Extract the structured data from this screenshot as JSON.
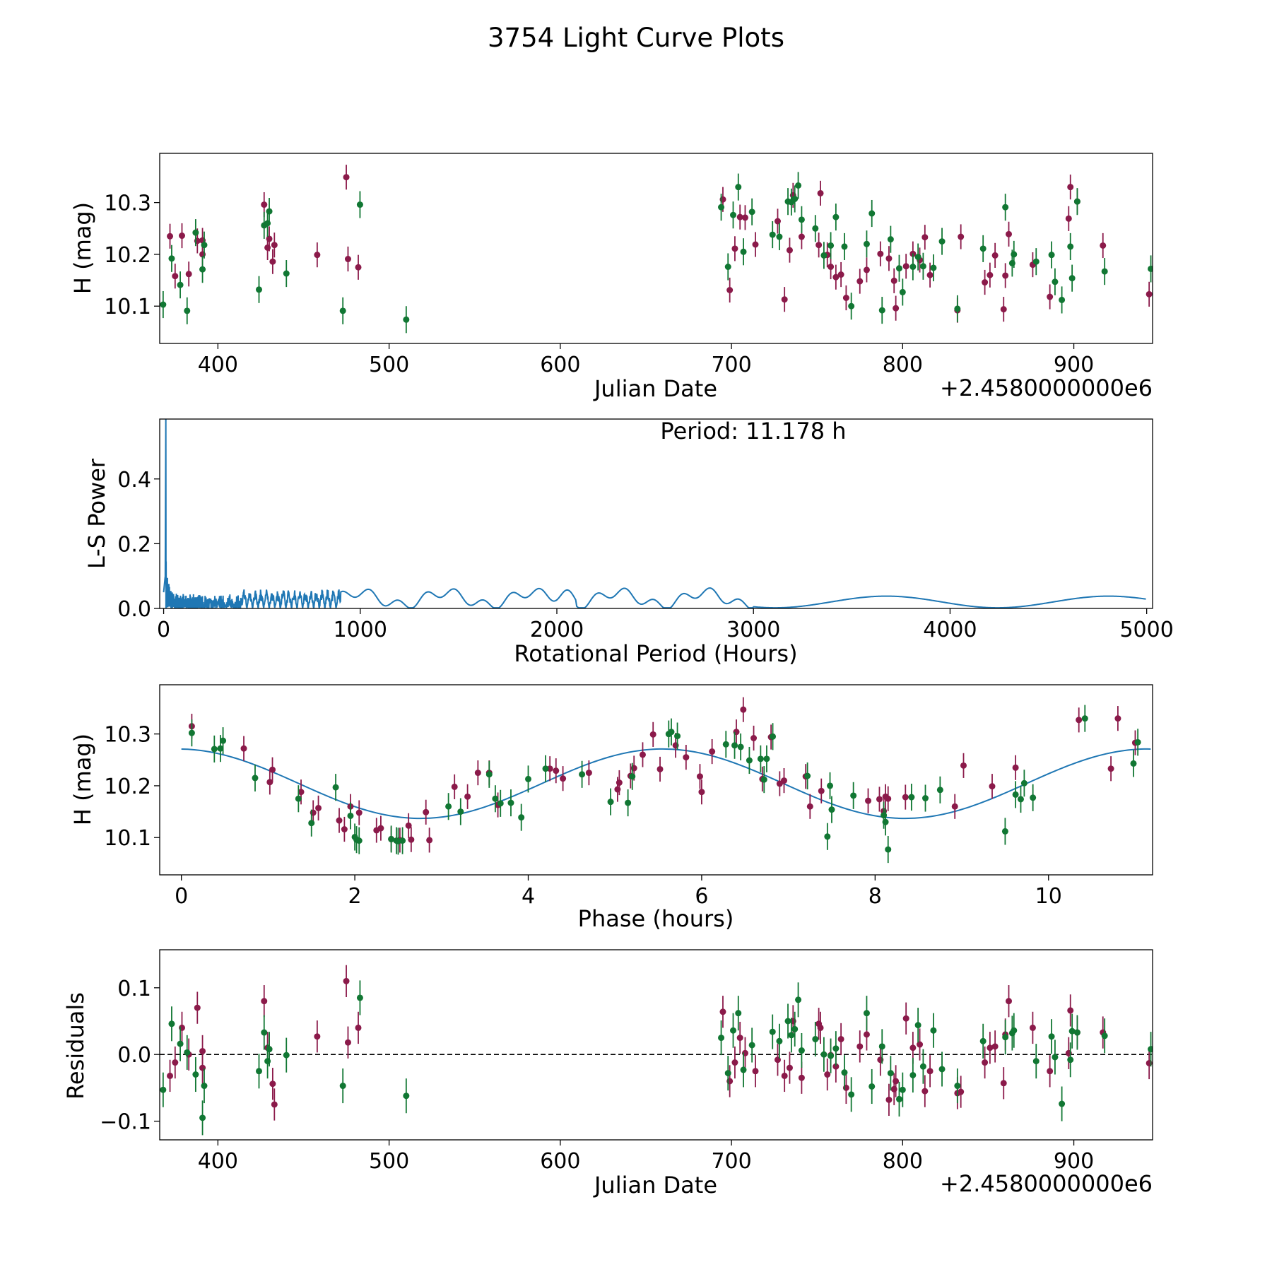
{
  "figure_title": "3754 Light Curve Plots",
  "colors": {
    "band_a": "#8b1a4a",
    "band_b": "#117733",
    "model": "#1f77b4",
    "zero": "#000000"
  },
  "chart_data": [
    {
      "id": "lightcurve",
      "type": "scatter",
      "xlabel": "Julian Date",
      "ylabel": "H (mag)",
      "offset_label": "+2.4580000000e6",
      "xlim": [
        366,
        946
      ],
      "ylim": [
        10.028,
        10.395
      ],
      "xticks": [
        400,
        500,
        600,
        700,
        800,
        900
      ],
      "yticks": [
        10.1,
        10.2,
        10.3
      ],
      "series": [
        {
          "name": "band A",
          "color": "#8b1a4a",
          "err": 0.024,
          "x": [
            372,
            375,
            379,
            383,
            388,
            391,
            391,
            427,
            429,
            430,
            432,
            433,
            458,
            475,
            476,
            482,
            695,
            699,
            702,
            705,
            708,
            714,
            727,
            731,
            734,
            736,
            741,
            751,
            752,
            756,
            758,
            761,
            764,
            767,
            775,
            779,
            787,
            792,
            795,
            796,
            802,
            806,
            810,
            813,
            816,
            832,
            834,
            848,
            851,
            854,
            859,
            860,
            862,
            876,
            886,
            897,
            898,
            902,
            917,
            944
          ],
          "y": [
            10.235,
            10.158,
            10.236,
            10.162,
            10.226,
            10.227,
            10.2,
            10.296,
            10.213,
            10.23,
            10.186,
            10.218,
            10.199,
            10.349,
            10.191,
            10.175,
            10.306,
            10.131,
            10.211,
            10.272,
            10.271,
            10.219,
            10.264,
            10.113,
            10.208,
            10.314,
            10.234,
            10.218,
            10.318,
            10.199,
            10.176,
            10.156,
            10.161,
            10.116,
            10.148,
            10.17,
            10.201,
            10.192,
            10.149,
            10.096,
            10.177,
            10.201,
            10.189,
            10.233,
            10.16,
            10.092,
            10.234,
            10.146,
            10.16,
            10.198,
            10.094,
            10.159,
            10.239,
            10.18,
            10.118,
            10.269,
            10.33,
            10.302,
            10.217,
            10.123
          ]
        },
        {
          "name": "band B",
          "color": "#117733",
          "err": 0.026,
          "x": [
            368,
            373,
            378,
            382,
            387,
            391,
            392,
            424,
            427,
            429,
            430,
            440,
            473,
            483,
            510,
            694,
            698,
            701,
            704,
            707,
            712,
            724,
            728,
            733,
            735,
            737,
            739,
            741,
            749,
            754,
            758,
            761,
            766,
            770,
            779,
            782,
            788,
            793,
            798,
            800,
            806,
            809,
            812,
            818,
            823,
            832,
            847,
            860,
            864,
            865,
            878,
            887,
            889,
            893,
            898,
            899,
            902,
            918,
            945
          ],
          "y": [
            10.103,
            10.192,
            10.141,
            10.091,
            10.242,
            10.171,
            10.218,
            10.132,
            10.256,
            10.26,
            10.283,
            10.163,
            10.091,
            10.296,
            10.074,
            10.291,
            10.176,
            10.276,
            10.33,
            10.205,
            10.282,
            10.238,
            10.234,
            10.302,
            10.301,
            10.307,
            10.333,
            10.267,
            10.25,
            10.198,
            10.217,
            10.272,
            10.215,
            10.1,
            10.22,
            10.279,
            10.092,
            10.229,
            10.173,
            10.127,
            10.176,
            10.195,
            10.177,
            10.174,
            10.225,
            10.095,
            10.211,
            10.291,
            10.183,
            10.2,
            10.186,
            10.199,
            10.147,
            10.112,
            10.215,
            10.154,
            10.302,
            10.167,
            10.172
          ]
        }
      ]
    },
    {
      "id": "periodogram",
      "type": "line",
      "xlabel": "Rotational Period (Hours)",
      "ylabel": "L-S Power",
      "annotation": "Period: 11.178 h",
      "xlim": [
        -20,
        5030
      ],
      "ylim": [
        0,
        0.585
      ],
      "xticks": [
        0,
        1000,
        2000,
        3000,
        4000,
        5000
      ],
      "yticks": [
        0.0,
        0.2,
        0.4
      ],
      "ytick_labels": [
        "0.0",
        "0.2",
        "0.4"
      ],
      "line_color": "#1f77b4",
      "peak": [
        11.178,
        0.59
      ],
      "max_period": 5000
    },
    {
      "id": "phased",
      "type": "scatter",
      "xlabel": "Phase (hours)",
      "ylabel": "H (mag)",
      "xlim": [
        -0.25,
        11.2
      ],
      "ylim": [
        10.028,
        10.395
      ],
      "xticks": [
        0,
        2,
        4,
        6,
        8,
        10
      ],
      "yticks": [
        10.1,
        10.2,
        10.3
      ],
      "model": {
        "mean": 10.204,
        "amplitude": 0.067,
        "period": 11.178,
        "max_phase": 5.55,
        "color": "#1f77b4"
      },
      "series": [
        {
          "name": "band A",
          "color": "#8b1a4a",
          "err": 0.024,
          "x": [
            0.12,
            0.72,
            1.02,
            1.05,
            1.38,
            1.52,
            1.58,
            1.82,
            1.88,
            1.95,
            2.05,
            2.25,
            2.3,
            2.42,
            2.52,
            2.62,
            2.65,
            2.82,
            2.86,
            3.15,
            3.3,
            3.42,
            3.55,
            3.65,
            4.25,
            4.32,
            4.4,
            4.7,
            5.03,
            5.05,
            5.18,
            5.22,
            5.32,
            5.44,
            5.52,
            5.7,
            5.82,
            5.98,
            6.0,
            6.12,
            6.4,
            6.48,
            6.6,
            6.7,
            6.8,
            6.9,
            6.95,
            7.2,
            7.25,
            7.38,
            7.92,
            8.05,
            8.1,
            8.12,
            8.15,
            8.35,
            8.92,
            9.02,
            9.35,
            9.62,
            10.35,
            10.72,
            10.8,
            11.0
          ],
          "y": [
            10.315,
            10.272,
            10.207,
            10.231,
            10.188,
            10.148,
            10.157,
            10.133,
            10.116,
            10.16,
            10.148,
            10.114,
            10.118,
            10.097,
            10.095,
            10.123,
            10.096,
            10.149,
            10.095,
            10.198,
            10.179,
            10.225,
            10.225,
            10.163,
            10.233,
            10.229,
            10.214,
            10.225,
            10.193,
            10.206,
            10.219,
            10.234,
            10.26,
            10.299,
            10.232,
            10.278,
            10.255,
            10.218,
            10.188,
            10.266,
            10.304,
            10.347,
            10.292,
            10.213,
            10.294,
            10.204,
            10.21,
            10.218,
            10.16,
            10.19,
            10.171,
            10.174,
            10.151,
            10.179,
            10.175,
            10.178,
            10.16,
            10.239,
            10.199,
            10.235,
            10.327,
            10.233,
            10.33,
            10.283
          ]
        },
        {
          "name": "band B",
          "color": "#117733",
          "err": 0.026,
          "x": [
            0.12,
            0.38,
            0.45,
            0.48,
            0.85,
            1.35,
            1.5,
            1.78,
            1.95,
            2.0,
            2.02,
            2.05,
            2.42,
            2.48,
            2.5,
            2.55,
            3.08,
            3.22,
            3.55,
            3.62,
            3.68,
            3.8,
            3.92,
            4.0,
            4.2,
            4.62,
            4.95,
            5.15,
            5.2,
            5.62,
            5.65,
            5.72,
            6.28,
            6.38,
            6.45,
            6.55,
            6.68,
            6.72,
            6.75,
            6.82,
            7.22,
            7.45,
            7.48,
            7.5,
            7.75,
            8.1,
            8.12,
            8.15,
            8.42,
            8.58,
            8.75,
            9.5,
            9.62,
            9.68,
            9.72,
            9.82,
            10.42,
            10.98,
            11.03
          ],
          "y": [
            10.302,
            10.271,
            10.272,
            10.287,
            10.215,
            10.175,
            10.128,
            10.197,
            10.142,
            10.101,
            10.096,
            10.094,
            10.097,
            10.094,
            10.093,
            10.094,
            10.16,
            10.15,
            10.222,
            10.175,
            10.166,
            10.167,
            10.139,
            10.213,
            10.233,
            10.222,
            10.169,
            10.167,
            10.218,
            10.3,
            10.304,
            10.296,
            10.28,
            10.278,
            10.275,
            10.249,
            10.252,
            10.212,
            10.252,
            10.295,
            10.219,
            10.102,
            10.2,
            10.154,
            10.181,
            10.143,
            10.13,
            10.077,
            10.178,
            10.176,
            10.192,
            10.112,
            10.183,
            10.174,
            10.205,
            10.177,
            10.33,
            10.243,
            10.284
          ]
        }
      ]
    },
    {
      "id": "residuals",
      "type": "scatter",
      "xlabel": "Julian Date",
      "ylabel": "Residuals",
      "offset_label": "+2.4580000000e6",
      "xlim": [
        366,
        946
      ],
      "ylim": [
        -0.128,
        0.157
      ],
      "xticks": [
        400,
        500,
        600,
        700,
        800,
        900
      ],
      "yticks": [
        -0.1,
        0.0,
        0.1
      ],
      "ytick_labels": [
        "−0.1",
        "0.0",
        "0.1"
      ],
      "zero_line": 0,
      "series": [
        {
          "name": "band A",
          "color": "#8b1a4a",
          "err": 0.024,
          "x": [
            372,
            375,
            379,
            383,
            388,
            391,
            391,
            427,
            429,
            430,
            432,
            433,
            458,
            475,
            476,
            482,
            695,
            699,
            702,
            705,
            708,
            714,
            727,
            731,
            734,
            736,
            741,
            751,
            752,
            756,
            758,
            761,
            764,
            767,
            775,
            779,
            787,
            792,
            795,
            796,
            802,
            806,
            810,
            813,
            816,
            832,
            834,
            848,
            851,
            854,
            859,
            860,
            862,
            876,
            886,
            897,
            898,
            902,
            917,
            944
          ],
          "y": [
            -0.032,
            -0.012,
            0.04,
            0.0,
            0.07,
            0.005,
            -0.02,
            0.08,
            0.01,
            0.008,
            -0.044,
            -0.075,
            0.027,
            0.11,
            0.018,
            0.04,
            0.064,
            -0.04,
            -0.012,
            0.025,
            0.002,
            -0.025,
            -0.008,
            -0.032,
            -0.02,
            0.05,
            -0.035,
            0.046,
            0.04,
            -0.03,
            -0.001,
            -0.018,
            0.023,
            -0.05,
            0.012,
            0.03,
            -0.008,
            -0.068,
            -0.052,
            -0.04,
            0.054,
            0.01,
            0.015,
            -0.055,
            -0.025,
            -0.058,
            -0.056,
            -0.012,
            0.01,
            0.012,
            -0.043,
            0.03,
            0.08,
            0.04,
            -0.025,
            0.002,
            0.066,
            0.033,
            0.033,
            -0.013
          ]
        },
        {
          "name": "band B",
          "color": "#117733",
          "err": 0.026,
          "x": [
            368,
            373,
            378,
            382,
            387,
            391,
            392,
            424,
            427,
            429,
            430,
            440,
            473,
            483,
            510,
            694,
            698,
            701,
            704,
            707,
            712,
            724,
            728,
            733,
            735,
            737,
            739,
            741,
            749,
            754,
            758,
            761,
            766,
            770,
            779,
            782,
            788,
            793,
            798,
            800,
            806,
            809,
            812,
            818,
            823,
            832,
            847,
            860,
            864,
            865,
            878,
            887,
            889,
            893,
            898,
            899,
            902,
            918,
            945
          ],
          "y": [
            -0.053,
            0.046,
            0.016,
            0.003,
            -0.03,
            -0.095,
            -0.047,
            -0.025,
            0.033,
            -0.01,
            0.008,
            -0.001,
            -0.047,
            0.085,
            -0.062,
            0.025,
            -0.028,
            0.036,
            0.062,
            -0.023,
            0.014,
            0.034,
            0.02,
            0.05,
            0.029,
            0.038,
            0.082,
            0.006,
            0.023,
            0.0,
            -0.002,
            0.009,
            -0.027,
            -0.06,
            0.062,
            -0.048,
            0.012,
            -0.028,
            -0.067,
            -0.053,
            -0.031,
            0.044,
            -0.018,
            0.036,
            -0.022,
            -0.047,
            0.02,
            0.026,
            0.032,
            0.036,
            -0.01,
            0.027,
            -0.004,
            -0.074,
            -0.008,
            0.035,
            0.033,
            0.028,
            0.008
          ]
        }
      ]
    }
  ]
}
